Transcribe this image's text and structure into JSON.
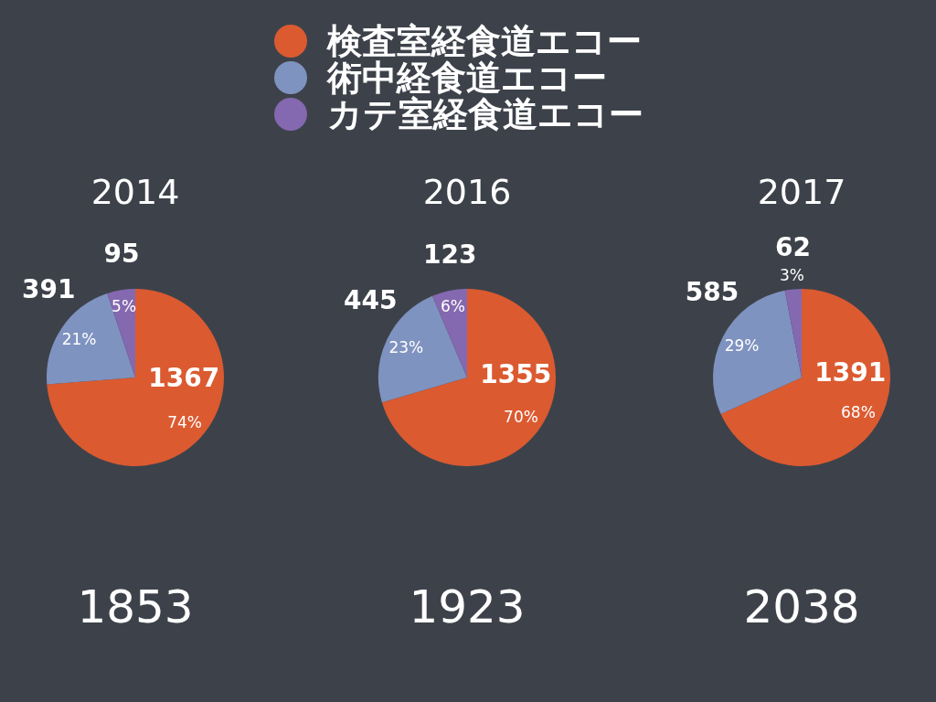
{
  "chart_data": [
    {
      "type": "pie",
      "title": "2014",
      "categories": [
        null,
        null,
        null
      ],
      "values": [
        1367,
        391,
        95
      ],
      "colors": [
        "#db5a30",
        "#7f93c0",
        "#8468b0"
      ],
      "data_labels": true,
      "annotations": [
        {
          "text": "74%"
        },
        {
          "text": "21%"
        },
        {
          "text": "5%"
        },
        "1853"
      ]
    },
    {
      "type": "pie",
      "title": "2016",
      "categories": [
        "検査室経食道エコー",
        "術中経食道エコー",
        "カテ室経食道エコー"
      ],
      "values": [
        1355,
        445,
        123
      ],
      "colors": [
        "#db5a30",
        "#7f93c0",
        "#8468b0"
      ],
      "data_labels": true,
      "annotations": [
        {
          "text": "70%"
        },
        {
          "text": "23%"
        },
        {
          "text": "6%"
        },
        "1923"
      ],
      "legend": "top"
    },
    {
      "type": "pie",
      "title": "2017",
      "categories": [
        null,
        null,
        null
      ],
      "values": [
        1391,
        585,
        62
      ],
      "colors": [
        "#db5a30",
        "#7f93c0",
        "#8468b0"
      ],
      "data_labels": true,
      "annotations": [
        {
          "text": "68%"
        },
        {
          "text": "29%"
        },
        {
          "text": "3%"
        },
        "2038"
      ]
    }
  ]
}
